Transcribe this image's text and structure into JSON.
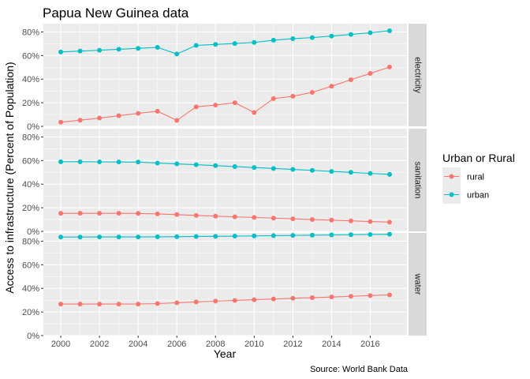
{
  "chart_data": {
    "type": "line",
    "title": "Papua New Guinea data",
    "xlabel": "Year",
    "ylabel": "Access to infrastructure (Percent of Population)",
    "caption": "Source: World Bank Data",
    "x": [
      2000,
      2001,
      2002,
      2003,
      2004,
      2005,
      2006,
      2007,
      2008,
      2009,
      2010,
      2011,
      2012,
      2013,
      2014,
      2015,
      2016,
      2017
    ],
    "xlim": [
      1999.1,
      2017.9
    ],
    "x_ticks": [
      2000,
      2002,
      2004,
      2006,
      2008,
      2010,
      2012,
      2014,
      2016
    ],
    "ylim": [
      0,
      87
    ],
    "y_ticks": [
      0,
      20,
      40,
      60,
      80
    ],
    "y_tick_suffix": "%",
    "grid": true,
    "legend": {
      "title": "Urban or Rural",
      "placement": "right",
      "entries": [
        {
          "name": "rural",
          "color": "#F8766D"
        },
        {
          "name": "urban",
          "color": "#00BFC4"
        }
      ]
    },
    "colors": {
      "panel_bg": "#EBEBEB",
      "grid": "#FFFFFF",
      "strip_bg": "#D9D9D9",
      "tick": "#333333"
    },
    "facets": [
      {
        "label": "electricity",
        "series": [
          {
            "name": "rural",
            "values": [
              3.5,
              5.2,
              7.0,
              9.0,
              11.0,
              12.8,
              5.0,
              16.5,
              18.0,
              20.0,
              11.7,
              23.5,
              25.5,
              28.8,
              34.0,
              39.5,
              44.8,
              50.3
            ]
          },
          {
            "name": "urban",
            "values": [
              63.0,
              63.8,
              64.5,
              65.3,
              66.1,
              66.9,
              61.3,
              68.6,
              69.4,
              70.2,
              71.1,
              73.0,
              74.3,
              75.2,
              76.5,
              77.9,
              79.3,
              81.0
            ]
          }
        ]
      },
      {
        "label": "sanitation",
        "series": [
          {
            "name": "rural",
            "values": [
              15.3,
              15.3,
              15.3,
              15.3,
              15.2,
              14.8,
              14.2,
              13.5,
              12.9,
              12.3,
              11.8,
              11.2,
              10.6,
              10.0,
              9.5,
              8.9,
              8.3,
              7.8
            ]
          },
          {
            "name": "urban",
            "values": [
              59.0,
              59.0,
              58.9,
              58.8,
              58.7,
              57.9,
              57.2,
              56.5,
              55.7,
              54.9,
              54.1,
              53.3,
              52.5,
              51.7,
              50.8,
              50.0,
              49.1,
              48.3
            ]
          }
        ]
      },
      {
        "label": "water",
        "series": [
          {
            "name": "rural",
            "values": [
              26.7,
              26.7,
              26.7,
              26.7,
              26.7,
              27.1,
              27.8,
              28.5,
              29.2,
              29.8,
              30.4,
              31.0,
              31.6,
              32.1,
              32.7,
              33.3,
              33.9,
              34.5
            ]
          },
          {
            "name": "urban",
            "values": [
              83.5,
              83.5,
              83.6,
              83.6,
              83.6,
              83.7,
              83.8,
              84.0,
              84.1,
              84.3,
              84.5,
              84.7,
              84.9,
              85.1,
              85.3,
              85.5,
              85.7,
              85.9
            ]
          }
        ]
      }
    ]
  }
}
